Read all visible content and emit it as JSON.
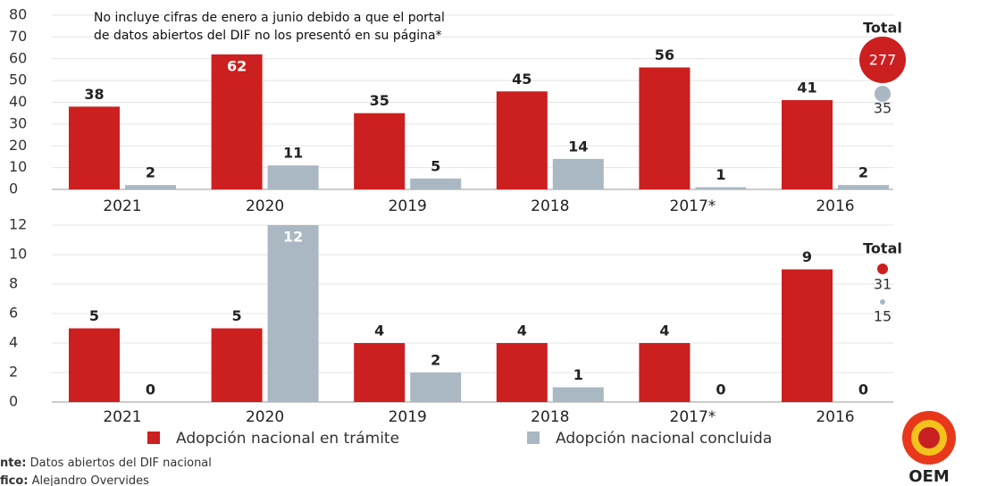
{
  "chart_data": [
    {
      "type": "bar",
      "annotation": [
        "No incluye cifras de enero a junio debido a que el portal",
        "de datos abiertos del DIF no los presentó en su página*"
      ],
      "categories": [
        "2021",
        "2020",
        "2019",
        "2018",
        "2017*",
        "2016"
      ],
      "series": [
        {
          "name": "Adopción nacional en trámite",
          "color": "#cc1f1f",
          "values": [
            38,
            62,
            35,
            45,
            56,
            41
          ]
        },
        {
          "name": "Adopción nacional concluida",
          "color": "#a9b8c3",
          "values": [
            2,
            11,
            5,
            14,
            1,
            2
          ]
        }
      ],
      "ylim": [
        0,
        80
      ],
      "yticks": [
        0,
        10,
        20,
        30,
        40,
        50,
        60,
        70,
        80
      ],
      "totals": {
        "label": "Total",
        "values": [
          277,
          35
        ]
      }
    },
    {
      "type": "bar",
      "categories": [
        "2021",
        "2020",
        "2019",
        "2018",
        "2017*",
        "2016"
      ],
      "series": [
        {
          "color": "#cc1f1f",
          "values": [
            5,
            5,
            4,
            4,
            4,
            9
          ]
        },
        {
          "color": "#a9b8c3",
          "values": [
            0,
            12,
            2,
            1,
            0,
            0
          ]
        }
      ],
      "ylim": [
        0,
        12
      ],
      "yticks": [
        0,
        2,
        4,
        6,
        8,
        10,
        12
      ],
      "totals": {
        "label": "Total",
        "values": [
          31,
          15
        ]
      }
    }
  ],
  "source": {
    "label": "nte:",
    "text": "Datos abiertos del DIF nacional"
  },
  "credit": {
    "label": "fico:",
    "text": "Alejandro Overvides"
  },
  "logo": "OEM"
}
